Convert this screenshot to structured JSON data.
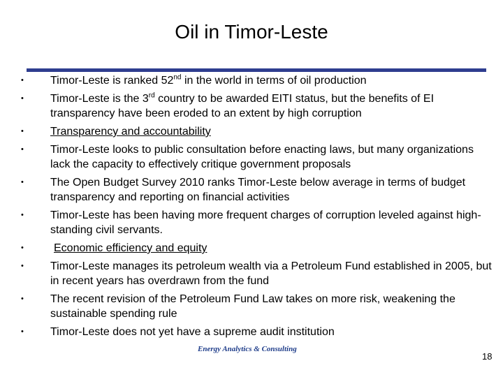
{
  "title": "Oil in Timor-Leste",
  "bullets": [
    {
      "pre": "Timor-Leste is ranked 52",
      "sup": "nd",
      "post": " in the world in terms of oil production"
    },
    {
      "pre": "Timor-Leste is the 3",
      "sup": "rd",
      "post": " country to be awarded EITI status, but the benefits of EI transparency have been eroded to an extent by high corruption"
    },
    {
      "text": "Transparency and accountability"
    },
    {
      "text": "Timor-Leste looks to public consultation before enacting laws, but many organizations lack the capacity to effectively critique government proposals"
    },
    {
      "text": "The Open Budget Survey 2010 ranks Timor-Leste below average in terms of budget transparency and reporting on financial activities"
    },
    {
      "text": "Timor-Leste has been having more frequent charges of corruption leveled against high-standing civil servants."
    },
    {
      "text": "Economic efficiency and equity"
    },
    {
      "text": "Timor-Leste manages its petroleum wealth via a Petroleum Fund established in 2005, but in recent years has overdrawn from the fund"
    },
    {
      "text": "The recent revision of the Petroleum Fund Law takes on more risk, weakening the sustainable spending rule"
    },
    {
      "text": "Timor-Leste does not yet have a supreme audit institution"
    }
  ],
  "bullet_glyph": "•",
  "footer": "Energy Analytics & Consulting",
  "page_number": "18",
  "colors": {
    "rule": "#2e3d8f",
    "footer": "#1f3d8a"
  }
}
